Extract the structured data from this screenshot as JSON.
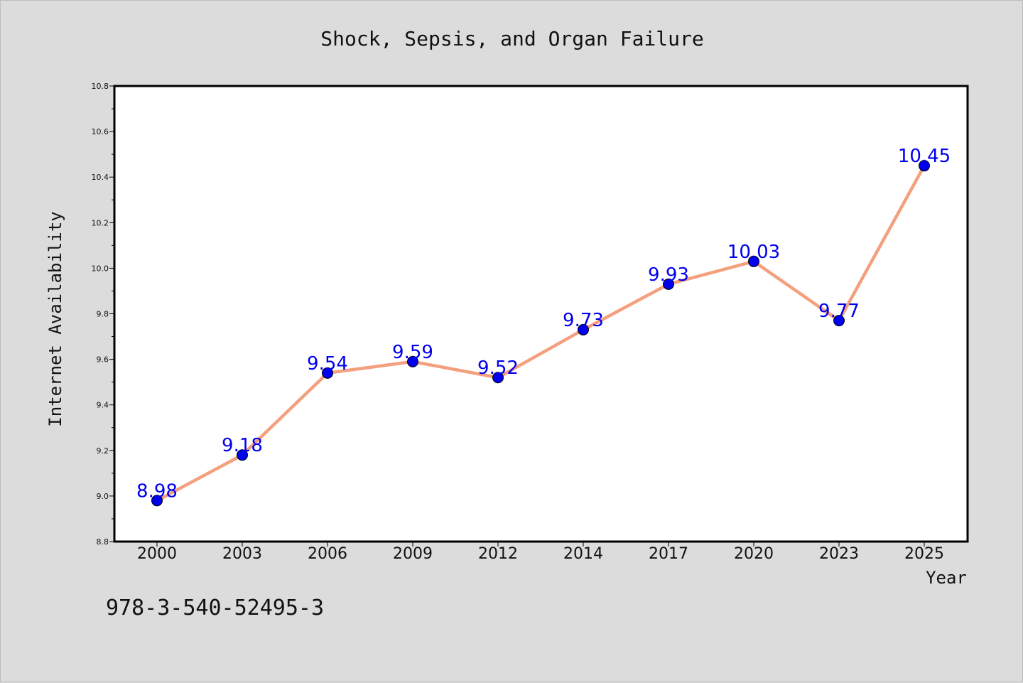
{
  "chart_data": {
    "type": "line",
    "title": "Shock, Sepsis, and Organ Failure",
    "xlabel": "Year",
    "ylabel": "Internet Availability",
    "categories": [
      "2000",
      "2003",
      "2006",
      "2009",
      "2012",
      "2014",
      "2017",
      "2020",
      "2023",
      "2025"
    ],
    "series": [
      {
        "values": [
          8.98,
          9.18,
          9.54,
          9.59,
          9.52,
          9.73,
          9.93,
          10.03,
          9.77,
          10.45
        ],
        "line_color": "#f4a07e",
        "marker_color": "#0000ee",
        "label_color": "#0000ee"
      }
    ],
    "data_labels": [
      "8.98",
      "9.18",
      "9.54",
      "9.59",
      "9.52",
      "9.73",
      "9.93",
      "10.03",
      "9.77",
      "10.45"
    ],
    "ylim": [
      8.8,
      10.8
    ],
    "yticks": [
      "8.8",
      "9.0",
      "9.2",
      "9.4",
      "9.6",
      "9.8",
      "10.0",
      "10.2",
      "10.4",
      "10.6",
      "10.8"
    ],
    "grid": false,
    "legend": "none",
    "plot_background": "#ffffff",
    "figure_background": "#dcdcdc"
  },
  "annotation": {
    "isbn": "978-3-540-52495-3"
  }
}
